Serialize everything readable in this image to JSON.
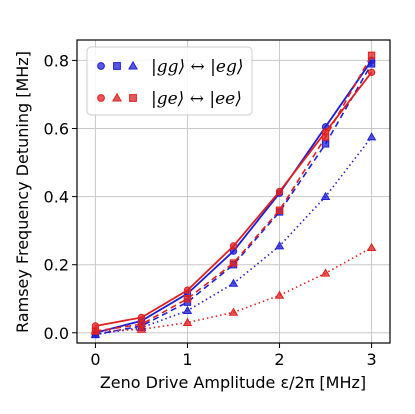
{
  "chart_data": {
    "type": "line",
    "xlabel": "Zeno Drive Amplitude ε/2π [MHz]",
    "ylabel": "Ramsey Frequency Detuning [MHz]",
    "xlim": [
      -0.2,
      3.2
    ],
    "ylim": [
      -0.03,
      0.86
    ],
    "xticks": [
      0,
      1,
      2,
      3
    ],
    "yticks": [
      0.0,
      0.2,
      0.4,
      0.6,
      0.8
    ],
    "grid": true,
    "legend_position": "top-left",
    "legend": [
      {
        "label": "|gg⟩ ↔ |eg⟩",
        "color": "#1f1fd6"
      },
      {
        "label": "|ge⟩ ↔ |ee⟩",
        "color": "#e02020"
      }
    ],
    "x": [
      0,
      0.5,
      1,
      1.5,
      2,
      2.5,
      3
    ],
    "series": [
      {
        "group": 0,
        "marker": "circle",
        "linestyle": "solid",
        "color": "#1f1fd6",
        "values": [
          0.0,
          0.035,
          0.115,
          0.24,
          0.41,
          0.605,
          0.8
        ]
      },
      {
        "group": 0,
        "marker": "square",
        "linestyle": "dashed",
        "color": "#1f1fd6",
        "values": [
          -0.005,
          0.02,
          0.09,
          0.2,
          0.355,
          0.555,
          0.79
        ]
      },
      {
        "group": 0,
        "marker": "triangle",
        "linestyle": "dotted",
        "color": "#1f1fd6",
        "values": [
          -0.005,
          0.015,
          0.065,
          0.145,
          0.255,
          0.4,
          0.575
        ]
      },
      {
        "group": 1,
        "marker": "circle",
        "linestyle": "solid",
        "color": "#e02020",
        "values": [
          0.02,
          0.045,
          0.125,
          0.255,
          0.415,
          0.59,
          0.765
        ]
      },
      {
        "group": 1,
        "marker": "triangle",
        "linestyle": "dotted",
        "color": "#e02020",
        "values": [
          0.005,
          0.01,
          0.03,
          0.06,
          0.11,
          0.175,
          0.25
        ]
      },
      {
        "group": 1,
        "marker": "square",
        "linestyle": "dashed",
        "color": "#e02020",
        "values": [
          0.005,
          0.025,
          0.1,
          0.205,
          0.36,
          0.575,
          0.815
        ]
      }
    ]
  }
}
